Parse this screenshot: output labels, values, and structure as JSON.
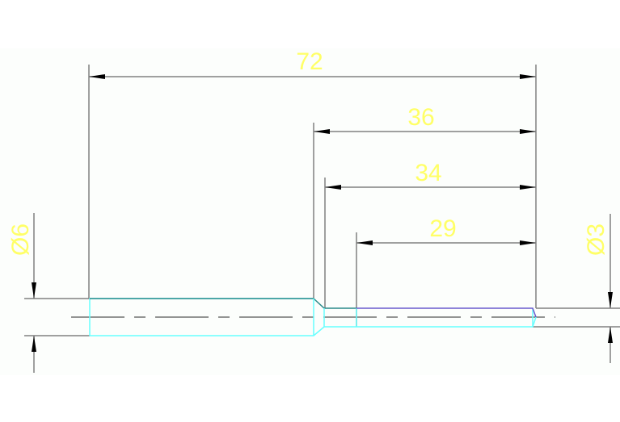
{
  "drawing": {
    "dimensions": {
      "overall_length": "72",
      "length_36": "36",
      "length_34": "34",
      "length_29": "29",
      "diameter_large": "Ø6",
      "diameter_small": "Ø3"
    },
    "colors": {
      "background": "#fcfefc",
      "dimension_text": "#ffff66",
      "dimension_lines": "#808080",
      "part_outline_cyan": "#66ffff",
      "part_outline_teal": "#2a8a8a",
      "part_outline_blue": "#6a5acd",
      "centerline": "#707070"
    }
  }
}
